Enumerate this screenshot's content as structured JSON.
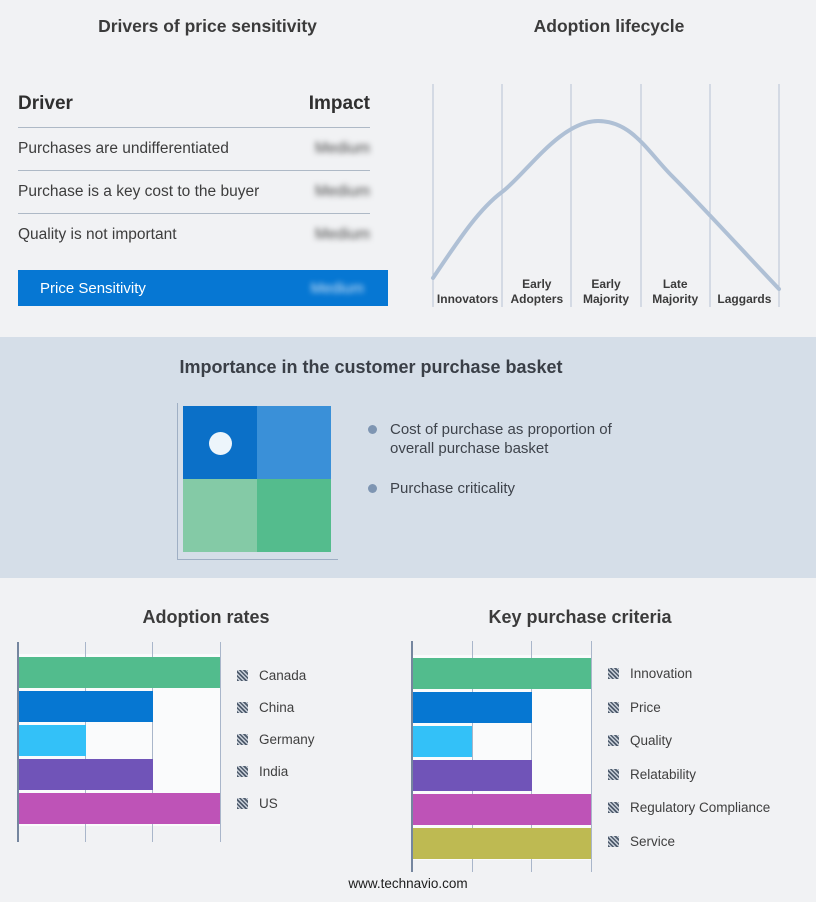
{
  "footer": {
    "url_text": "www.technavio.com"
  },
  "colors": {
    "background": "#f1f2f4",
    "band_background": "#d5dee8",
    "accent_blue": "#0677d3",
    "grid_line": "#a9b6ca",
    "axis_line": "#75869f",
    "curve": "#afc0d5",
    "bullet": "#7e95b2",
    "divider": "#aeb9c6"
  },
  "drivers_table": {
    "title": "Drivers of price sensitivity",
    "columns": {
      "driver": "Driver",
      "impact": "Impact"
    },
    "rows": [
      {
        "driver": "Purchases are undifferentiated",
        "impact": "Medium",
        "impact_blurred": true
      },
      {
        "driver": "Purchase is a key cost to the buyer",
        "impact": "Medium",
        "impact_blurred": true
      },
      {
        "driver": "Quality is not important",
        "impact": "Medium",
        "impact_blurred": true
      }
    ],
    "summary_row": {
      "label": "Price Sensitivity",
      "impact": "Medium",
      "impact_blurred": true
    }
  },
  "lifecycle": {
    "title": "Adoption lifecycle",
    "stages": [
      "Innovators",
      "Early Adopters",
      "Early Majority",
      "Late Majority",
      "Laggards"
    ]
  },
  "basket": {
    "title": "Importance in the customer purchase basket",
    "bullets": [
      "Cost of purchase as proportion of overall purchase basket",
      "Purchase criticality"
    ],
    "quadrant_colors": [
      "#0b70c8",
      "#3a90d8",
      "#84caa6",
      "#54bc8d"
    ],
    "dot_color": "#edf5fb"
  },
  "chart_data": [
    {
      "type": "bar",
      "orientation": "horizontal",
      "title": "Adoption rates",
      "categories": [
        "Canada",
        "China",
        "Germany",
        "India",
        "US"
      ],
      "values": [
        3,
        2,
        1,
        2,
        3
      ],
      "colors": [
        "#52bc8d",
        "#0677d2",
        "#33c1f8",
        "#7054b8",
        "#be53b7"
      ],
      "xlim": [
        0,
        3
      ],
      "x_ticks_shown": false,
      "grid": "vertical-only",
      "legend_position": "right",
      "legend_swatch": "gray-hatch"
    },
    {
      "type": "bar",
      "orientation": "horizontal",
      "title": "Key purchase criteria",
      "categories": [
        "Innovation",
        "Price",
        "Quality",
        "Relatability",
        "Regulatory Compliance",
        "Service"
      ],
      "values": [
        3,
        2,
        1,
        2,
        3,
        3
      ],
      "colors": [
        "#52bc8d",
        "#0677d2",
        "#33c1f8",
        "#7054b8",
        "#be53b7",
        "#beba52"
      ],
      "xlim": [
        0,
        3
      ],
      "x_ticks_shown": false,
      "grid": "vertical-only",
      "legend_position": "right",
      "legend_swatch": "gray-hatch"
    },
    {
      "type": "line",
      "title": "Adoption lifecycle",
      "x_stages": [
        "Innovators",
        "Early Adopters",
        "Early Majority",
        "Late Majority",
        "Laggards"
      ],
      "points_stage_units": [
        {
          "x": 0.0,
          "y": 0.05
        },
        {
          "x": 1.0,
          "y": 0.45
        },
        {
          "x": 2.0,
          "y": 0.75
        },
        {
          "x": 2.4,
          "y": 0.8
        },
        {
          "x": 3.0,
          "y": 0.68
        },
        {
          "x": 4.0,
          "y": 0.38
        },
        {
          "x": 5.0,
          "y": 0.02
        }
      ],
      "ylim": [
        0,
        1
      ],
      "grid": "vertical-only",
      "legend_position": "none"
    }
  ]
}
